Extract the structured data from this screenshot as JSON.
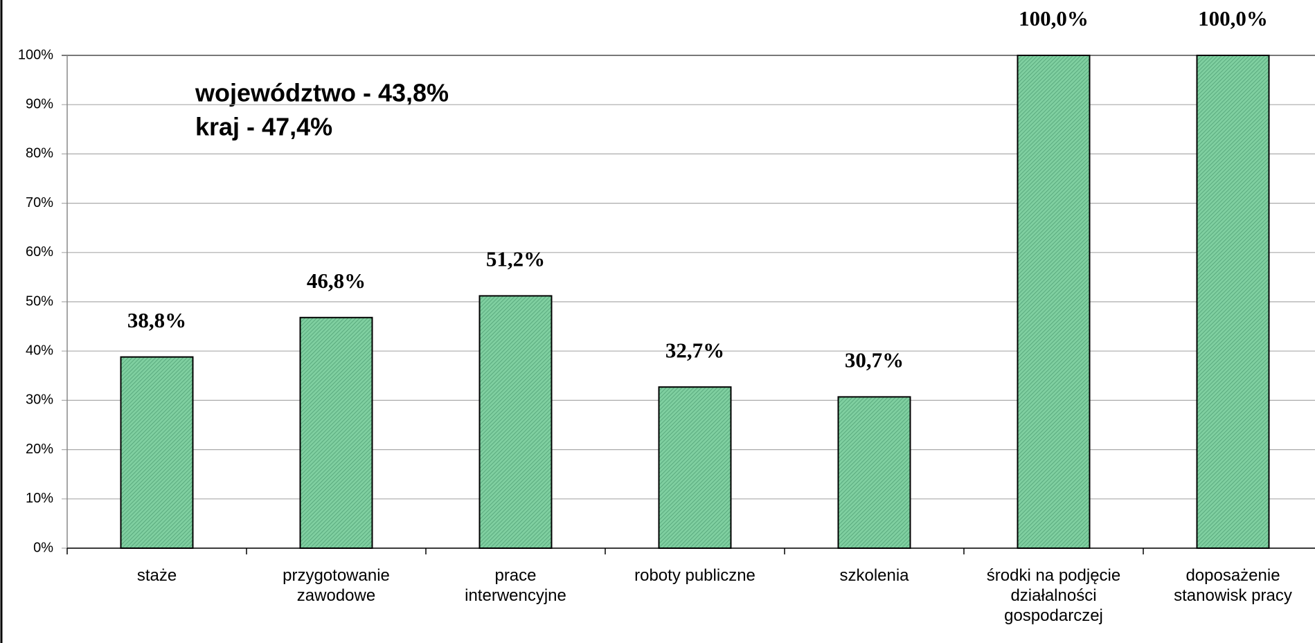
{
  "chart_data": {
    "type": "bar",
    "annotations": [
      "województwo - 43,8%",
      "kraj - 47,4%"
    ],
    "categories": [
      "staże",
      "przygotowanie\nzawodowe",
      "prace\ninterwencyjne",
      "roboty publiczne",
      "szkolenia",
      "środki na podjęcie\ndziałalności\ngospodarczej",
      "doposażenie\nstanowisk pracy"
    ],
    "values": [
      38.8,
      46.8,
      51.2,
      32.7,
      30.7,
      100,
      100
    ],
    "value_labels": [
      "38,8%",
      "46,8%",
      "51,2%",
      "32,7%",
      "30,7%",
      "100,0%",
      "100,0%"
    ],
    "color": "#7fcfa0",
    "ylim": [
      0,
      100
    ],
    "yticks": [
      {
        "value": 0,
        "label": "0%"
      },
      {
        "value": 10,
        "label": "10%"
      },
      {
        "value": 20,
        "label": "20%"
      },
      {
        "value": 30,
        "label": "30%"
      },
      {
        "value": 40,
        "label": "40%"
      },
      {
        "value": 50,
        "label": "50%"
      },
      {
        "value": 60,
        "label": "60%"
      },
      {
        "value": 70,
        "label": "70%"
      },
      {
        "value": 80,
        "label": "80%"
      },
      {
        "value": 90,
        "label": "90%"
      },
      {
        "value": 100,
        "label": "100%"
      }
    ],
    "grid": true
  }
}
